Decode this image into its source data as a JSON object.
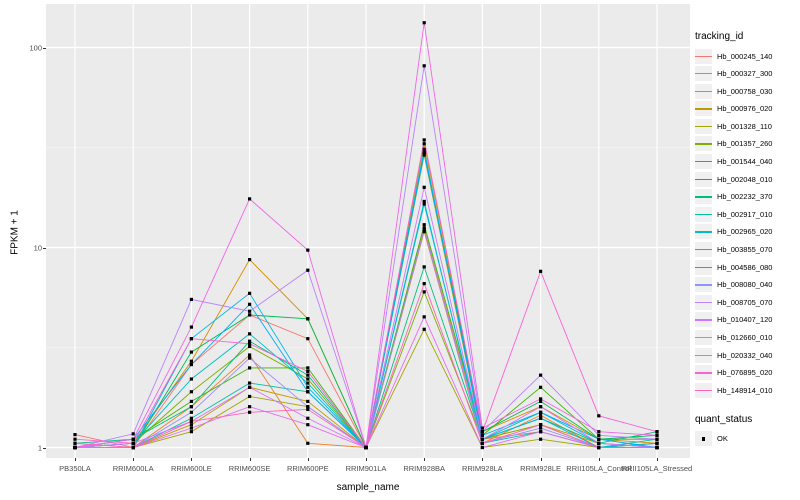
{
  "page": {
    "background": "#ffffff",
    "panel_background": "#EBEBEB",
    "gridline_color": "#FFFFFF",
    "axis_text_color": "#4D4D4D",
    "point_color": "#000000"
  },
  "y_axis": {
    "title": "FPKM + 1"
  },
  "x_axis": {
    "title": "sample_name"
  },
  "legend": {
    "tracking_title": "tracking_id",
    "quant_title": "quant_status",
    "quant_items": [
      {
        "label": "OK",
        "marker": "black-square-point"
      }
    ]
  },
  "chart_data": {
    "type": "line",
    "title": "",
    "xlabel": "sample_name",
    "ylabel": "FPKM + 1",
    "y_scale": "log10",
    "ylim": [
      0.89,
      165
    ],
    "y_major_ticks": [
      1,
      10,
      100
    ],
    "y_minor_ticks": [
      3.162,
      31.62
    ],
    "grid": "white major/minor on gray panel, vertical line per category",
    "legend_position": "right",
    "point_marker": "small black point at every value (quant_status = OK)",
    "categories": [
      "PB350LA",
      "RRIM600LA",
      "RRIM600LE",
      "RRIM600SE",
      "RRIM600PE",
      "RRIM901LA",
      "RRIM928BA",
      "RRIM928LA",
      "RRIM928LE",
      "RRII105LA_Control",
      "RRII105LA_Stressed"
    ],
    "series": [
      {
        "name": "Hb_000245_140",
        "color": "#F8766D",
        "values": [
          1.16,
          1.0,
          2.6,
          4.6,
          3.5,
          1.0,
          12.5,
          1.1,
          1.2,
          1.0,
          1.05
        ]
      },
      {
        "name": "Hb_000327_300",
        "color": "#EA8331",
        "values": [
          1.0,
          1.0,
          1.6,
          2.9,
          1.05,
          1.0,
          12.0,
          1.05,
          1.45,
          1.0,
          1.0
        ]
      },
      {
        "name": "Hb_000758_030",
        "color": "#D89000",
        "values": [
          1.0,
          1.05,
          2.7,
          8.7,
          4.4,
          1.0,
          33.0,
          1.2,
          1.6,
          1.1,
          1.05
        ]
      },
      {
        "name": "Hb_000976_020",
        "color": "#C09B00",
        "values": [
          1.0,
          1.0,
          1.3,
          2.0,
          1.7,
          1.0,
          29.0,
          1.1,
          1.3,
          1.05,
          1.0
        ]
      },
      {
        "name": "Hb_001328_110",
        "color": "#A3A500",
        "values": [
          1.0,
          1.0,
          1.2,
          1.8,
          1.6,
          1.0,
          3.9,
          1.0,
          1.1,
          1.0,
          1.0
        ]
      },
      {
        "name": "Hb_001357_260",
        "color": "#7CAE00",
        "values": [
          1.0,
          1.05,
          1.9,
          3.2,
          2.2,
          1.0,
          6.0,
          1.1,
          1.3,
          1.0,
          1.05
        ]
      },
      {
        "name": "Hb_001544_040",
        "color": "#39B600",
        "values": [
          1.0,
          1.1,
          1.7,
          2.5,
          2.5,
          1.0,
          13.0,
          1.15,
          2.0,
          1.1,
          1.1
        ]
      },
      {
        "name": "Hb_002048_010",
        "color": "#00BB4E",
        "values": [
          1.0,
          1.0,
          3.0,
          4.6,
          4.4,
          1.0,
          30.0,
          1.2,
          1.7,
          1.1,
          1.15
        ]
      },
      {
        "name": "Hb_002232_370",
        "color": "#00BF7D",
        "values": [
          1.05,
          1.1,
          1.6,
          3.4,
          2.3,
          1.0,
          8.0,
          1.1,
          1.4,
          1.05,
          1.2
        ]
      },
      {
        "name": "Hb_002917_010",
        "color": "#00C1A3",
        "values": [
          1.0,
          1.0,
          1.4,
          2.1,
          1.9,
          1.0,
          17.0,
          1.05,
          1.2,
          1.0,
          1.1
        ]
      },
      {
        "name": "Hb_002965_020",
        "color": "#00BFC4",
        "values": [
          1.0,
          1.05,
          2.2,
          3.7,
          2.1,
          1.0,
          31.0,
          1.1,
          1.5,
          1.05,
          1.0
        ]
      },
      {
        "name": "Hb_003855_070",
        "color": "#00B8E7",
        "values": [
          1.0,
          1.0,
          3.5,
          5.9,
          2.0,
          1.0,
          16.5,
          1.1,
          1.4,
          1.0,
          1.05
        ]
      },
      {
        "name": "Hb_004586_080",
        "color": "#00ACFC",
        "values": [
          1.0,
          1.1,
          2.6,
          5.2,
          1.9,
          1.0,
          29.5,
          1.15,
          1.5,
          1.1,
          1.0
        ]
      },
      {
        "name": "Hb_008080_040",
        "color": "#9590FF",
        "values": [
          1.0,
          1.0,
          1.5,
          2.8,
          1.6,
          1.0,
          12.3,
          1.05,
          1.25,
          1.0,
          1.0
        ]
      },
      {
        "name": "Hb_008705_070",
        "color": "#B983FF",
        "values": [
          1.0,
          1.17,
          5.5,
          4.8,
          7.7,
          1.0,
          81.0,
          1.2,
          2.3,
          1.15,
          1.1
        ]
      },
      {
        "name": "Hb_010407_120",
        "color": "#D376FF",
        "values": [
          1.0,
          1.05,
          1.35,
          2.0,
          1.4,
          1.0,
          20.0,
          1.1,
          1.6,
          1.05,
          1.0
        ]
      },
      {
        "name": "Hb_012660_010",
        "color": "#E76BF3",
        "values": [
          1.0,
          1.0,
          1.25,
          1.6,
          1.3,
          1.0,
          4.5,
          1.0,
          1.2,
          1.0,
          1.0
        ]
      },
      {
        "name": "Hb_020332_040",
        "color": "#F166E8",
        "values": [
          1.0,
          1.1,
          4.0,
          17.5,
          9.7,
          1.0,
          133.0,
          1.25,
          1.75,
          1.2,
          1.15
        ]
      },
      {
        "name": "Hb_076895_020",
        "color": "#FC61D5",
        "values": [
          1.1,
          1.05,
          3.5,
          3.3,
          2.4,
          1.0,
          34.5,
          1.2,
          7.6,
          1.44,
          1.2
        ]
      },
      {
        "name": "Hb_148914_010",
        "color": "#FF62BC",
        "values": [
          1.05,
          1.0,
          1.35,
          1.5,
          1.55,
          1.0,
          6.6,
          1.05,
          1.3,
          1.0,
          1.0
        ]
      }
    ]
  }
}
